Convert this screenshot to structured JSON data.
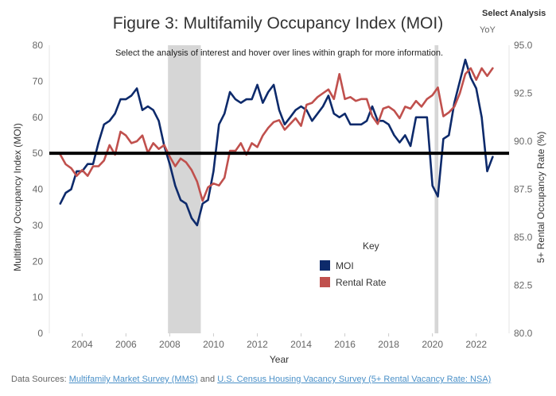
{
  "header": {
    "title": "Figure 3: Multifamily Occupancy Index (MOI)",
    "select_label": "Select Analysis",
    "select_value": "YoY"
  },
  "footer": {
    "prefix": "Data Sources: ",
    "link1": "Multifamily Market Survey (MMS)",
    "joiner": " and ",
    "link2": "U.S. Census Housing Vacancy Survey (5+ Rental Vacancy Rate: NSA)"
  },
  "colors": {
    "moi": "#0d2a6b",
    "rental": "#c0504d",
    "recession": "#d6d6d6",
    "baseline": "#000000"
  },
  "chart_data": {
    "type": "line",
    "instruction": "Select the analysis of interest and hover over lines within graph for more information.",
    "xlabel": "Year",
    "ylabel": "Multifamily Occupancy Index (MOI)",
    "y2label": "5+ Rental Occupancy Rate (%)",
    "xlim": [
      2002.5,
      2023.5
    ],
    "xticks": [
      2004,
      2006,
      2008,
      2010,
      2012,
      2014,
      2016,
      2018,
      2020,
      2022
    ],
    "ylim": [
      0,
      80
    ],
    "yticks": [
      0,
      10,
      20,
      30,
      40,
      50,
      60,
      70,
      80
    ],
    "y2lim": [
      80,
      95
    ],
    "y2ticks": [
      "80.0",
      "82.5",
      "85.0",
      "87.5",
      "90.0",
      "92.5",
      "95.0"
    ],
    "grid": false,
    "baseline": 50,
    "recessions": [
      [
        2007.92,
        2009.42
      ],
      [
        2020.1,
        2020.27
      ]
    ],
    "legend": {
      "title": "Key",
      "position": "center",
      "items": [
        "MOI",
        "Rental Rate"
      ]
    },
    "series": [
      {
        "name": "MOI",
        "axis": "left",
        "points": [
          [
            2003.0,
            36
          ],
          [
            2003.25,
            39
          ],
          [
            2003.5,
            40
          ],
          [
            2003.75,
            45
          ],
          [
            2004.0,
            45
          ],
          [
            2004.25,
            47
          ],
          [
            2004.5,
            47
          ],
          [
            2004.75,
            53
          ],
          [
            2005.0,
            58
          ],
          [
            2005.25,
            59
          ],
          [
            2005.5,
            61
          ],
          [
            2005.75,
            65
          ],
          [
            2006.0,
            65
          ],
          [
            2006.25,
            66
          ],
          [
            2006.5,
            68
          ],
          [
            2006.75,
            62
          ],
          [
            2007.0,
            63
          ],
          [
            2007.25,
            62
          ],
          [
            2007.5,
            59
          ],
          [
            2007.75,
            52
          ],
          [
            2008.0,
            47
          ],
          [
            2008.25,
            41
          ],
          [
            2008.5,
            37
          ],
          [
            2008.75,
            36
          ],
          [
            2009.0,
            32
          ],
          [
            2009.25,
            30
          ],
          [
            2009.5,
            36
          ],
          [
            2009.75,
            37
          ],
          [
            2010.0,
            45
          ],
          [
            2010.25,
            58
          ],
          [
            2010.5,
            61
          ],
          [
            2010.75,
            67
          ],
          [
            2011.0,
            65
          ],
          [
            2011.25,
            64
          ],
          [
            2011.5,
            65
          ],
          [
            2011.75,
            65
          ],
          [
            2012.0,
            69
          ],
          [
            2012.25,
            64
          ],
          [
            2012.5,
            67
          ],
          [
            2012.75,
            69
          ],
          [
            2013.0,
            62
          ],
          [
            2013.25,
            58
          ],
          [
            2013.5,
            60
          ],
          [
            2013.75,
            62
          ],
          [
            2014.0,
            63
          ],
          [
            2014.25,
            62
          ],
          [
            2014.5,
            59
          ],
          [
            2014.75,
            61
          ],
          [
            2015.0,
            63
          ],
          [
            2015.25,
            66
          ],
          [
            2015.5,
            61
          ],
          [
            2015.75,
            60
          ],
          [
            2016.0,
            61
          ],
          [
            2016.25,
            58
          ],
          [
            2016.5,
            58
          ],
          [
            2016.75,
            58
          ],
          [
            2017.0,
            59
          ],
          [
            2017.25,
            63
          ],
          [
            2017.5,
            59
          ],
          [
            2017.75,
            59
          ],
          [
            2018.0,
            58
          ],
          [
            2018.25,
            55
          ],
          [
            2018.5,
            53
          ],
          [
            2018.75,
            55
          ],
          [
            2019.0,
            52
          ],
          [
            2019.25,
            60
          ],
          [
            2019.5,
            60
          ],
          [
            2019.75,
            60
          ],
          [
            2020.0,
            41
          ],
          [
            2020.25,
            38
          ],
          [
            2020.5,
            54
          ],
          [
            2020.75,
            55
          ],
          [
            2021.0,
            64
          ],
          [
            2021.25,
            70
          ],
          [
            2021.5,
            76
          ],
          [
            2021.75,
            71
          ],
          [
            2022.0,
            68
          ],
          [
            2022.25,
            60
          ],
          [
            2022.5,
            45
          ],
          [
            2022.75,
            49
          ]
        ]
      },
      {
        "name": "Rental Rate",
        "axis": "right",
        "points": [
          [
            2003.0,
            89.3
          ],
          [
            2003.25,
            88.8
          ],
          [
            2003.5,
            88.6
          ],
          [
            2003.75,
            88.2
          ],
          [
            2004.0,
            88.5
          ],
          [
            2004.25,
            88.2
          ],
          [
            2004.5,
            88.7
          ],
          [
            2004.75,
            88.7
          ],
          [
            2005.0,
            89.0
          ],
          [
            2005.25,
            89.8
          ],
          [
            2005.5,
            89.3
          ],
          [
            2005.75,
            90.5
          ],
          [
            2006.0,
            90.3
          ],
          [
            2006.25,
            89.9
          ],
          [
            2006.5,
            90.0
          ],
          [
            2006.75,
            90.3
          ],
          [
            2007.0,
            89.4
          ],
          [
            2007.25,
            89.9
          ],
          [
            2007.5,
            89.6
          ],
          [
            2007.75,
            89.8
          ],
          [
            2008.0,
            89.2
          ],
          [
            2008.25,
            88.7
          ],
          [
            2008.5,
            89.1
          ],
          [
            2008.75,
            88.9
          ],
          [
            2009.0,
            88.5
          ],
          [
            2009.25,
            87.9
          ],
          [
            2009.5,
            86.9
          ],
          [
            2009.75,
            87.6
          ],
          [
            2010.0,
            87.8
          ],
          [
            2010.25,
            87.7
          ],
          [
            2010.5,
            88.1
          ],
          [
            2010.75,
            89.5
          ],
          [
            2011.0,
            89.5
          ],
          [
            2011.25,
            89.9
          ],
          [
            2011.5,
            89.3
          ],
          [
            2011.75,
            89.9
          ],
          [
            2012.0,
            89.7
          ],
          [
            2012.25,
            90.3
          ],
          [
            2012.5,
            90.7
          ],
          [
            2012.75,
            91.0
          ],
          [
            2013.0,
            91.1
          ],
          [
            2013.25,
            90.6
          ],
          [
            2013.5,
            90.9
          ],
          [
            2013.75,
            91.2
          ],
          [
            2014.0,
            90.8
          ],
          [
            2014.25,
            91.9
          ],
          [
            2014.5,
            92.0
          ],
          [
            2014.75,
            92.3
          ],
          [
            2015.0,
            92.5
          ],
          [
            2015.25,
            92.7
          ],
          [
            2015.5,
            92.2
          ],
          [
            2015.75,
            93.5
          ],
          [
            2016.0,
            92.2
          ],
          [
            2016.25,
            92.3
          ],
          [
            2016.5,
            92.1
          ],
          [
            2016.75,
            92.2
          ],
          [
            2017.0,
            92.2
          ],
          [
            2017.25,
            91.3
          ],
          [
            2017.5,
            90.9
          ],
          [
            2017.75,
            91.7
          ],
          [
            2018.0,
            91.8
          ],
          [
            2018.25,
            91.6
          ],
          [
            2018.5,
            91.2
          ],
          [
            2018.75,
            91.8
          ],
          [
            2019.0,
            91.7
          ],
          [
            2019.25,
            92.1
          ],
          [
            2019.5,
            91.8
          ],
          [
            2019.75,
            92.2
          ],
          [
            2020.0,
            92.4
          ],
          [
            2020.25,
            92.8
          ],
          [
            2020.5,
            91.3
          ],
          [
            2020.75,
            91.5
          ],
          [
            2021.0,
            91.8
          ],
          [
            2021.25,
            92.5
          ],
          [
            2021.5,
            93.5
          ],
          [
            2021.75,
            93.8
          ],
          [
            2022.0,
            93.2
          ],
          [
            2022.25,
            93.8
          ],
          [
            2022.5,
            93.4
          ],
          [
            2022.75,
            93.8
          ]
        ]
      }
    ]
  }
}
